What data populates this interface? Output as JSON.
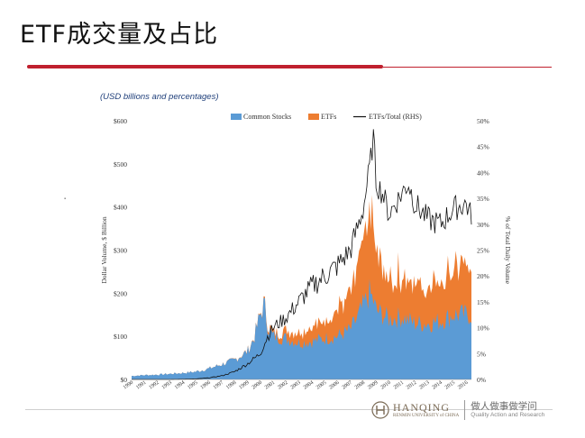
{
  "slide": {
    "title": "ETF成交量及占比",
    "subtitle": "(USD billions and percentages)"
  },
  "colors": {
    "common_stocks": "#5b9bd5",
    "etfs": "#ed7d31",
    "etfs_total": "#111111",
    "accent": "#c0202e"
  },
  "footer": {
    "logo_name": "HANQING",
    "logo_tagline": "RENMIN UNIVERSITY of CHINA",
    "logo_cn": "做人做事做学问",
    "logo_en": "Quality Action and Research"
  },
  "chart_data": {
    "type": "area",
    "ylabel": "Dollar Volume, $ Billion",
    "y2label": "% of Total Daily Volume",
    "ylim": [
      0,
      600
    ],
    "y2lim": [
      0,
      50
    ],
    "yticks": [
      "$0",
      "$100",
      "$200",
      "$300",
      "$400",
      "$500",
      "$600"
    ],
    "y2ticks": [
      "0%",
      "5%",
      "10%",
      "15%",
      "20%",
      "25%",
      "30%",
      "35%",
      "40%",
      "45%",
      "50%"
    ],
    "xticks": [
      "1990",
      "1991",
      "1992",
      "1993",
      "1994",
      "1995",
      "1996",
      "1997",
      "1998",
      "1999",
      "2000",
      "2001",
      "2002",
      "2003",
      "2004",
      "2005",
      "2006",
      "2007",
      "2008",
      "2009",
      "2010",
      "2011",
      "2012",
      "2013",
      "2014",
      "2015",
      "2016"
    ],
    "xlim": [
      1990,
      2016.4
    ],
    "legend_position": "top",
    "grid": false,
    "series": [
      {
        "name": "Common Stocks",
        "kind": "area",
        "axis": "left",
        "x": [
          1990,
          1991,
          1992,
          1993,
          1994,
          1995,
          1996,
          1997,
          1998,
          1999,
          1999.5,
          2000,
          2000.3,
          2000.6,
          2001,
          2002,
          2003,
          2004,
          2005,
          2006,
          2007,
          2007.5,
          2008,
          2008.5,
          2008.8,
          2009,
          2009.5,
          2010,
          2011,
          2012,
          2013,
          2014,
          2015,
          2016.3
        ],
        "values": [
          8,
          10,
          11,
          13,
          15,
          18,
          25,
          35,
          45,
          65,
          95,
          150,
          175,
          120,
          100,
          95,
          85,
          88,
          95,
          100,
          115,
          140,
          170,
          200,
          180,
          160,
          150,
          140,
          145,
          130,
          130,
          135,
          150,
          150
        ]
      },
      {
        "name": "ETFs",
        "kind": "area",
        "axis": "left",
        "x": [
          1990,
          1995,
          1998,
          1999,
          2000,
          2000.5,
          2001,
          2002,
          2003,
          2004,
          2005,
          2006,
          2007,
          2007.5,
          2008,
          2008.5,
          2008.8,
          2009,
          2009.5,
          2010,
          2011,
          2012,
          2013,
          2014,
          2015,
          2016.3
        ],
        "values": [
          0,
          0,
          0.5,
          1,
          2,
          5,
          10,
          18,
          25,
          35,
          45,
          60,
          80,
          110,
          160,
          210,
          170,
          130,
          110,
          95,
          105,
          90,
          85,
          95,
          110,
          105
        ]
      },
      {
        "name": "ETFs/Total (RHS)",
        "kind": "line",
        "axis": "right",
        "x": [
          1990,
          1993,
          1995,
          1996,
          1997,
          1998,
          1999,
          2000,
          2000.5,
          2001,
          2002,
          2003,
          2004,
          2005,
          2006,
          2007,
          2007.5,
          2008,
          2008.5,
          2008.8,
          2009,
          2009.5,
          2010,
          2011,
          2011.5,
          2012,
          2013,
          2014,
          2015,
          2016,
          2016.3
        ],
        "values": [
          0,
          0,
          0.1,
          0.3,
          0.7,
          1.5,
          3,
          5,
          8,
          10,
          12,
          15,
          18,
          20,
          22,
          25,
          29,
          33,
          41,
          47,
          38,
          36,
          32,
          36,
          38,
          34,
          31,
          30,
          33,
          34,
          32
        ]
      }
    ]
  }
}
